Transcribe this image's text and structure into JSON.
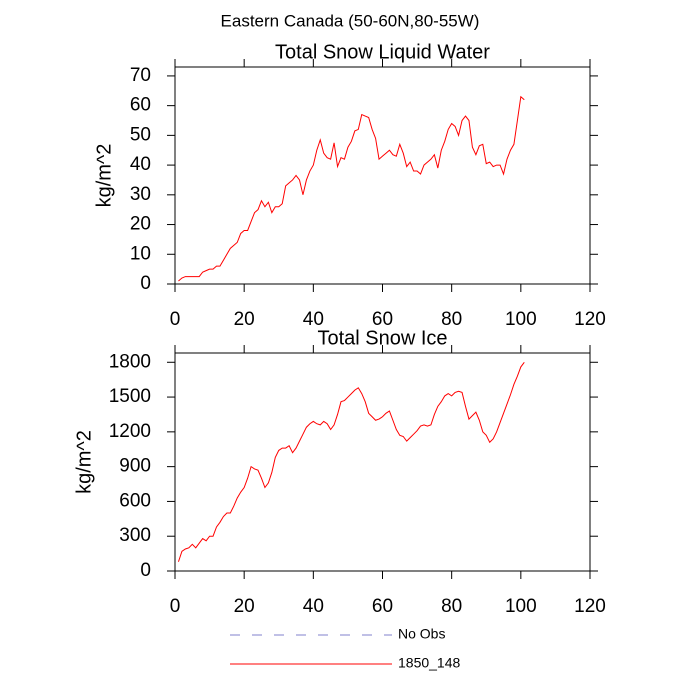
{
  "title": "Eastern Canada (50-60N,80-55W)",
  "legend": [
    {
      "name": "No Obs",
      "color": "#8080cc",
      "dashed": true
    }
  ],
  "chart_data": [
    {
      "type": "line",
      "title": "Total Snow Liquid Water",
      "y_label": "kg/m^2",
      "xlim": [
        0,
        120
      ],
      "xticks": [
        0,
        20,
        40,
        60,
        80,
        100,
        120
      ],
      "ylim": [
        0,
        73
      ],
      "yticks": [
        0,
        10,
        20,
        30,
        40,
        50,
        60,
        70
      ],
      "x": [
        1,
        2,
        3,
        4,
        5,
        6,
        7,
        8,
        9,
        10,
        11,
        12,
        13,
        14,
        15,
        16,
        17,
        18,
        19,
        20,
        21,
        22,
        23,
        24,
        25,
        26,
        27,
        28,
        29,
        30,
        31,
        32,
        33,
        34,
        35,
        36,
        37,
        38,
        39,
        40,
        41,
        42,
        43,
        44,
        45,
        46,
        47,
        48,
        49,
        50,
        51,
        52,
        53,
        54,
        55,
        56,
        57,
        58,
        59,
        60,
        61,
        62,
        63,
        64,
        65,
        66,
        67,
        68,
        69,
        70,
        71,
        72,
        73,
        74,
        75,
        76,
        77,
        78,
        79,
        80,
        81,
        82,
        83,
        84,
        85,
        86,
        87,
        88,
        89,
        90,
        91,
        92,
        93,
        94,
        95,
        96,
        97,
        98,
        99,
        100,
        101
      ],
      "series": [
        {
          "name": "1850_148",
          "color": "#ff0000",
          "values": [
            1,
            2,
            2.5,
            2.5,
            2.5,
            2.5,
            2.5,
            4,
            4.5,
            5,
            5,
            6,
            6,
            8,
            10,
            12,
            13,
            14,
            17,
            18,
            18,
            21,
            24,
            25,
            28,
            26,
            27.5,
            24,
            26,
            26,
            27,
            33,
            34,
            35,
            36.5,
            35,
            30,
            35,
            38,
            40,
            45,
            48.5,
            44,
            42.5,
            42,
            47.5,
            39.5,
            42.5,
            42,
            46,
            48,
            51.5,
            52,
            57,
            56.5,
            56,
            52,
            49,
            42,
            43,
            44,
            45,
            43.5,
            43,
            47,
            44,
            39.5,
            41,
            38,
            38,
            37,
            40,
            41,
            42,
            43.5,
            39,
            45,
            48,
            52,
            54,
            53,
            50,
            55,
            56.5,
            55,
            46,
            43.5,
            46.5,
            47,
            40.5,
            41,
            39.5,
            40,
            40,
            37,
            42,
            45,
            47,
            55,
            63,
            62
          ]
        }
      ]
    },
    {
      "type": "line",
      "title": "Total Snow Ice",
      "y_label": "kg/m^2",
      "xlim": [
        0,
        120
      ],
      "xticks": [
        0,
        20,
        40,
        60,
        80,
        100,
        120
      ],
      "ylim": [
        0,
        1880
      ],
      "yticks": [
        0,
        300,
        600,
        900,
        1200,
        1500,
        1800
      ],
      "x": [
        1,
        2,
        3,
        4,
        5,
        6,
        7,
        8,
        9,
        10,
        11,
        12,
        13,
        14,
        15,
        16,
        17,
        18,
        19,
        20,
        21,
        22,
        23,
        24,
        25,
        26,
        27,
        28,
        29,
        30,
        31,
        32,
        33,
        34,
        35,
        36,
        37,
        38,
        39,
        40,
        41,
        42,
        43,
        44,
        45,
        46,
        47,
        48,
        49,
        50,
        51,
        52,
        53,
        54,
        55,
        56,
        57,
        58,
        59,
        60,
        61,
        62,
        63,
        64,
        65,
        66,
        67,
        68,
        69,
        70,
        71,
        72,
        73,
        74,
        75,
        76,
        77,
        78,
        79,
        80,
        81,
        82,
        83,
        84,
        85,
        86,
        87,
        88,
        89,
        90,
        91,
        92,
        93,
        94,
        95,
        96,
        97,
        98,
        99,
        100,
        101
      ],
      "series": [
        {
          "color": "#ff0000",
          "values": [
            80,
            170,
            190,
            200,
            230,
            200,
            240,
            280,
            260,
            300,
            300,
            380,
            420,
            470,
            500,
            500,
            560,
            630,
            680,
            720,
            800,
            900,
            880,
            870,
            800,
            720,
            760,
            850,
            980,
            1040,
            1060,
            1060,
            1080,
            1020,
            1060,
            1120,
            1180,
            1240,
            1270,
            1290,
            1270,
            1260,
            1290,
            1270,
            1220,
            1260,
            1350,
            1460,
            1470,
            1500,
            1530,
            1560,
            1580,
            1530,
            1460,
            1360,
            1330,
            1300,
            1310,
            1330,
            1360,
            1380,
            1300,
            1220,
            1170,
            1160,
            1120,
            1150,
            1180,
            1210,
            1250,
            1260,
            1250,
            1260,
            1350,
            1420,
            1460,
            1510,
            1530,
            1510,
            1540,
            1550,
            1540,
            1420,
            1310,
            1340,
            1370,
            1300,
            1200,
            1170,
            1110,
            1140,
            1200,
            1280,
            1360,
            1440,
            1520,
            1610,
            1680,
            1760,
            1800
          ]
        }
      ]
    }
  ]
}
